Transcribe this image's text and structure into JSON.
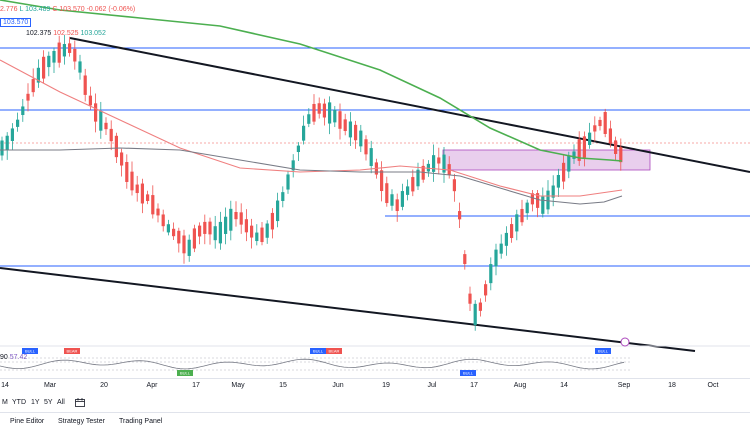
{
  "header": {
    "ohlc_left": "2.776",
    "ohlc_low": "L 103.489",
    "ohlc_close": "C 103.570",
    "ohlc_change": "-0.062 (-0.06%)",
    "price_box": "103.570",
    "prev_a": "102.375",
    "prev_b": "102.525",
    "prev_c": "103.052"
  },
  "rsi": {
    "lead": "90",
    "value": "57.42"
  },
  "signals": [
    "BEAR",
    "BULL",
    "BEAR",
    "BEAR",
    "BULL",
    "BEAR",
    "BULL",
    "BULL"
  ],
  "xaxis": {
    "ticks": [
      "14",
      "Mar",
      "20",
      "Apr",
      "17",
      "May",
      "15",
      "Jun",
      "19",
      "Jul",
      "17",
      "Aug",
      "14",
      "Sep",
      "18",
      "Oct"
    ]
  },
  "ranges": [
    "M",
    "YTD",
    "1Y",
    "5Y",
    "All"
  ],
  "panel_tabs": [
    "Pine Editor",
    "Strategy Tester",
    "Trading Panel"
  ],
  "colors": {
    "up": "#26a69a",
    "down": "#ef5350",
    "ma_green": "#4caf50",
    "ma_red": "#ef7f7f",
    "ma_gray": "#787b86",
    "hline": "#2962ff",
    "zone_fill": "#e1bee7",
    "zone_border": "#ab47bc",
    "trend": "#131722"
  },
  "chart_data": {
    "type": "candlestick",
    "candles_c": [
      {
        "c": "up"
      },
      {
        "c": "down"
      },
      {
        "c": "up"
      },
      {
        "c": "down"
      }
    ]
  }
}
